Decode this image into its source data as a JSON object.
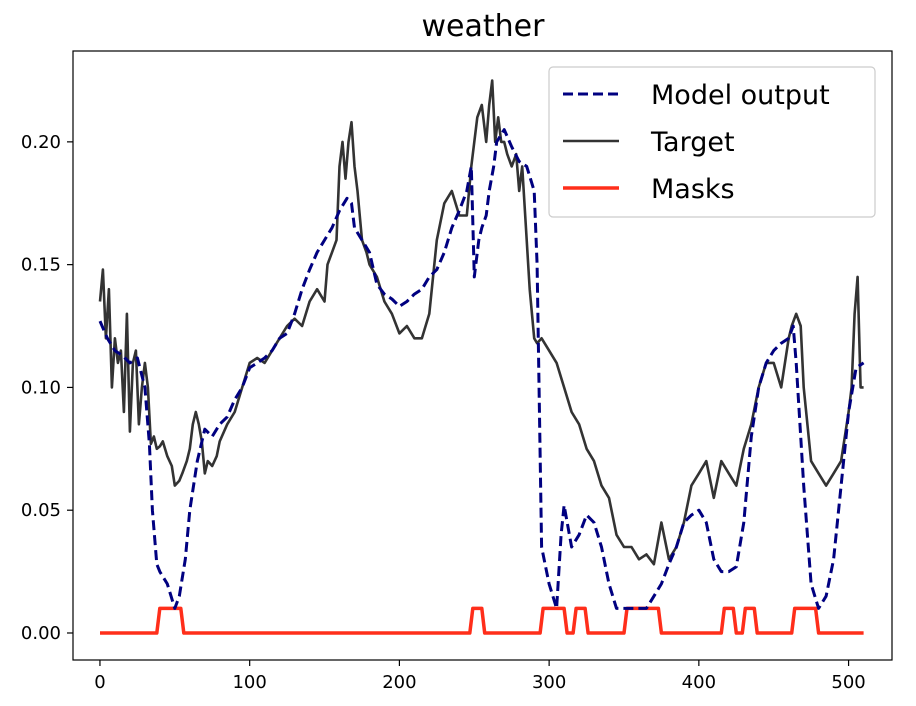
{
  "chart_data": {
    "type": "line",
    "title": "weather",
    "xlabel": "",
    "ylabel": "",
    "xlim": [
      -18,
      529
    ],
    "ylim": [
      -0.011,
      0.237
    ],
    "xticks": [
      0,
      100,
      200,
      300,
      400,
      500
    ],
    "xtick_labels": [
      "0",
      "100",
      "200",
      "300",
      "400",
      "500"
    ],
    "yticks": [
      0.0,
      0.05,
      0.1,
      0.15,
      0.2
    ],
    "ytick_labels": [
      "0.00",
      "0.05",
      "0.10",
      "0.15",
      "0.20"
    ],
    "legend_position": "top-right",
    "grid": false,
    "series": [
      {
        "name": "Model output",
        "color": "#000080",
        "style": "dashed",
        "x": [
          0,
          5,
          10,
          15,
          20,
          25,
          30,
          33,
          35,
          38,
          40,
          45,
          50,
          53,
          57,
          60,
          65,
          70,
          75,
          80,
          85,
          90,
          95,
          100,
          105,
          110,
          115,
          120,
          125,
          130,
          135,
          140,
          145,
          150,
          155,
          160,
          165,
          168,
          170,
          175,
          180,
          185,
          190,
          195,
          200,
          205,
          210,
          215,
          220,
          225,
          230,
          235,
          240,
          245,
          248,
          250,
          253,
          255,
          258,
          260,
          263,
          265,
          270,
          275,
          280,
          285,
          290,
          292,
          295,
          300,
          305,
          308,
          310,
          315,
          320,
          325,
          330,
          335,
          340,
          345,
          350,
          355,
          360,
          365,
          370,
          375,
          380,
          385,
          390,
          395,
          400,
          405,
          410,
          415,
          420,
          425,
          430,
          435,
          440,
          445,
          450,
          455,
          460,
          463,
          465,
          470,
          475,
          480,
          485,
          490,
          495,
          500,
          505,
          510
        ],
        "values": [
          0.127,
          0.12,
          0.115,
          0.113,
          0.11,
          0.112,
          0.1,
          0.077,
          0.05,
          0.028,
          0.025,
          0.02,
          0.01,
          0.015,
          0.03,
          0.05,
          0.07,
          0.083,
          0.08,
          0.085,
          0.088,
          0.095,
          0.1,
          0.108,
          0.11,
          0.112,
          0.115,
          0.12,
          0.122,
          0.13,
          0.14,
          0.148,
          0.155,
          0.16,
          0.165,
          0.172,
          0.177,
          0.175,
          0.165,
          0.16,
          0.155,
          0.142,
          0.138,
          0.136,
          0.133,
          0.135,
          0.138,
          0.14,
          0.145,
          0.148,
          0.155,
          0.165,
          0.172,
          0.18,
          0.19,
          0.145,
          0.16,
          0.165,
          0.17,
          0.18,
          0.19,
          0.2,
          0.205,
          0.198,
          0.192,
          0.19,
          0.18,
          0.15,
          0.035,
          0.02,
          0.01,
          0.04,
          0.052,
          0.035,
          0.04,
          0.048,
          0.045,
          0.035,
          0.02,
          0.01,
          0.01,
          0.01,
          0.01,
          0.01,
          0.015,
          0.02,
          0.028,
          0.035,
          0.045,
          0.048,
          0.05,
          0.045,
          0.03,
          0.025,
          0.025,
          0.027,
          0.045,
          0.08,
          0.1,
          0.11,
          0.115,
          0.118,
          0.12,
          0.125,
          0.11,
          0.06,
          0.02,
          0.01,
          0.015,
          0.03,
          0.06,
          0.09,
          0.108,
          0.11
        ]
      },
      {
        "name": "Target",
        "color": "#333333",
        "style": "solid",
        "x": [
          0,
          2,
          4,
          6,
          8,
          10,
          12,
          14,
          16,
          18,
          20,
          22,
          24,
          26,
          28,
          30,
          32,
          34,
          36,
          38,
          40,
          42,
          45,
          48,
          50,
          53,
          55,
          58,
          60,
          62,
          64,
          66,
          68,
          70,
          72,
          75,
          78,
          80,
          85,
          90,
          95,
          100,
          105,
          110,
          115,
          120,
          125,
          130,
          135,
          140,
          145,
          150,
          152,
          155,
          158,
          160,
          162,
          164,
          166,
          168,
          170,
          172,
          175,
          178,
          180,
          185,
          190,
          195,
          200,
          205,
          210,
          215,
          220,
          225,
          230,
          235,
          240,
          245,
          248,
          250,
          252,
          255,
          258,
          260,
          262,
          264,
          266,
          268,
          270,
          272,
          275,
          278,
          280,
          282,
          285,
          287,
          290,
          292,
          295,
          300,
          305,
          310,
          315,
          320,
          325,
          330,
          335,
          340,
          345,
          350,
          355,
          360,
          365,
          370,
          375,
          380,
          385,
          390,
          395,
          400,
          405,
          410,
          415,
          420,
          425,
          430,
          435,
          440,
          445,
          450,
          455,
          460,
          462,
          465,
          468,
          470,
          475,
          480,
          485,
          490,
          495,
          500,
          502,
          504,
          506,
          508,
          510
        ],
        "values": [
          0.135,
          0.148,
          0.12,
          0.14,
          0.1,
          0.12,
          0.11,
          0.115,
          0.09,
          0.13,
          0.082,
          0.11,
          0.115,
          0.085,
          0.1,
          0.11,
          0.1,
          0.077,
          0.08,
          0.075,
          0.076,
          0.078,
          0.072,
          0.068,
          0.06,
          0.062,
          0.065,
          0.07,
          0.075,
          0.085,
          0.09,
          0.085,
          0.078,
          0.065,
          0.07,
          0.068,
          0.072,
          0.078,
          0.085,
          0.09,
          0.1,
          0.11,
          0.112,
          0.11,
          0.115,
          0.12,
          0.125,
          0.128,
          0.125,
          0.135,
          0.14,
          0.135,
          0.15,
          0.155,
          0.16,
          0.19,
          0.2,
          0.185,
          0.2,
          0.208,
          0.19,
          0.18,
          0.16,
          0.155,
          0.15,
          0.145,
          0.135,
          0.13,
          0.122,
          0.125,
          0.12,
          0.12,
          0.13,
          0.16,
          0.175,
          0.18,
          0.17,
          0.17,
          0.19,
          0.2,
          0.21,
          0.215,
          0.2,
          0.215,
          0.225,
          0.2,
          0.21,
          0.2,
          0.2,
          0.195,
          0.19,
          0.195,
          0.18,
          0.19,
          0.16,
          0.14,
          0.12,
          0.118,
          0.12,
          0.115,
          0.11,
          0.1,
          0.09,
          0.085,
          0.075,
          0.07,
          0.06,
          0.055,
          0.04,
          0.035,
          0.035,
          0.03,
          0.032,
          0.028,
          0.045,
          0.03,
          0.035,
          0.045,
          0.06,
          0.065,
          0.07,
          0.055,
          0.07,
          0.065,
          0.06,
          0.075,
          0.085,
          0.1,
          0.11,
          0.11,
          0.1,
          0.12,
          0.125,
          0.13,
          0.125,
          0.1,
          0.07,
          0.065,
          0.06,
          0.065,
          0.07,
          0.09,
          0.1,
          0.13,
          0.145,
          0.1,
          0.1
        ]
      },
      {
        "name": "Masks",
        "color": "#ff2e1a",
        "style": "solid",
        "x": [
          0,
          38,
          40,
          54,
          56,
          247,
          249,
          255,
          257,
          294,
          296,
          310,
          312,
          316,
          318,
          324,
          326,
          350,
          352,
          373,
          375,
          415,
          417,
          423,
          425,
          429,
          431,
          437,
          439,
          462,
          464,
          478,
          480,
          510
        ],
        "values": [
          0,
          0,
          0.01,
          0.01,
          0,
          0,
          0.01,
          0.01,
          0,
          0,
          0.01,
          0.01,
          0,
          0,
          0.01,
          0.01,
          0,
          0,
          0.01,
          0.01,
          0,
          0,
          0.01,
          0.01,
          0,
          0,
          0.01,
          0.01,
          0,
          0,
          0.01,
          0.01,
          0,
          0
        ]
      }
    ]
  }
}
